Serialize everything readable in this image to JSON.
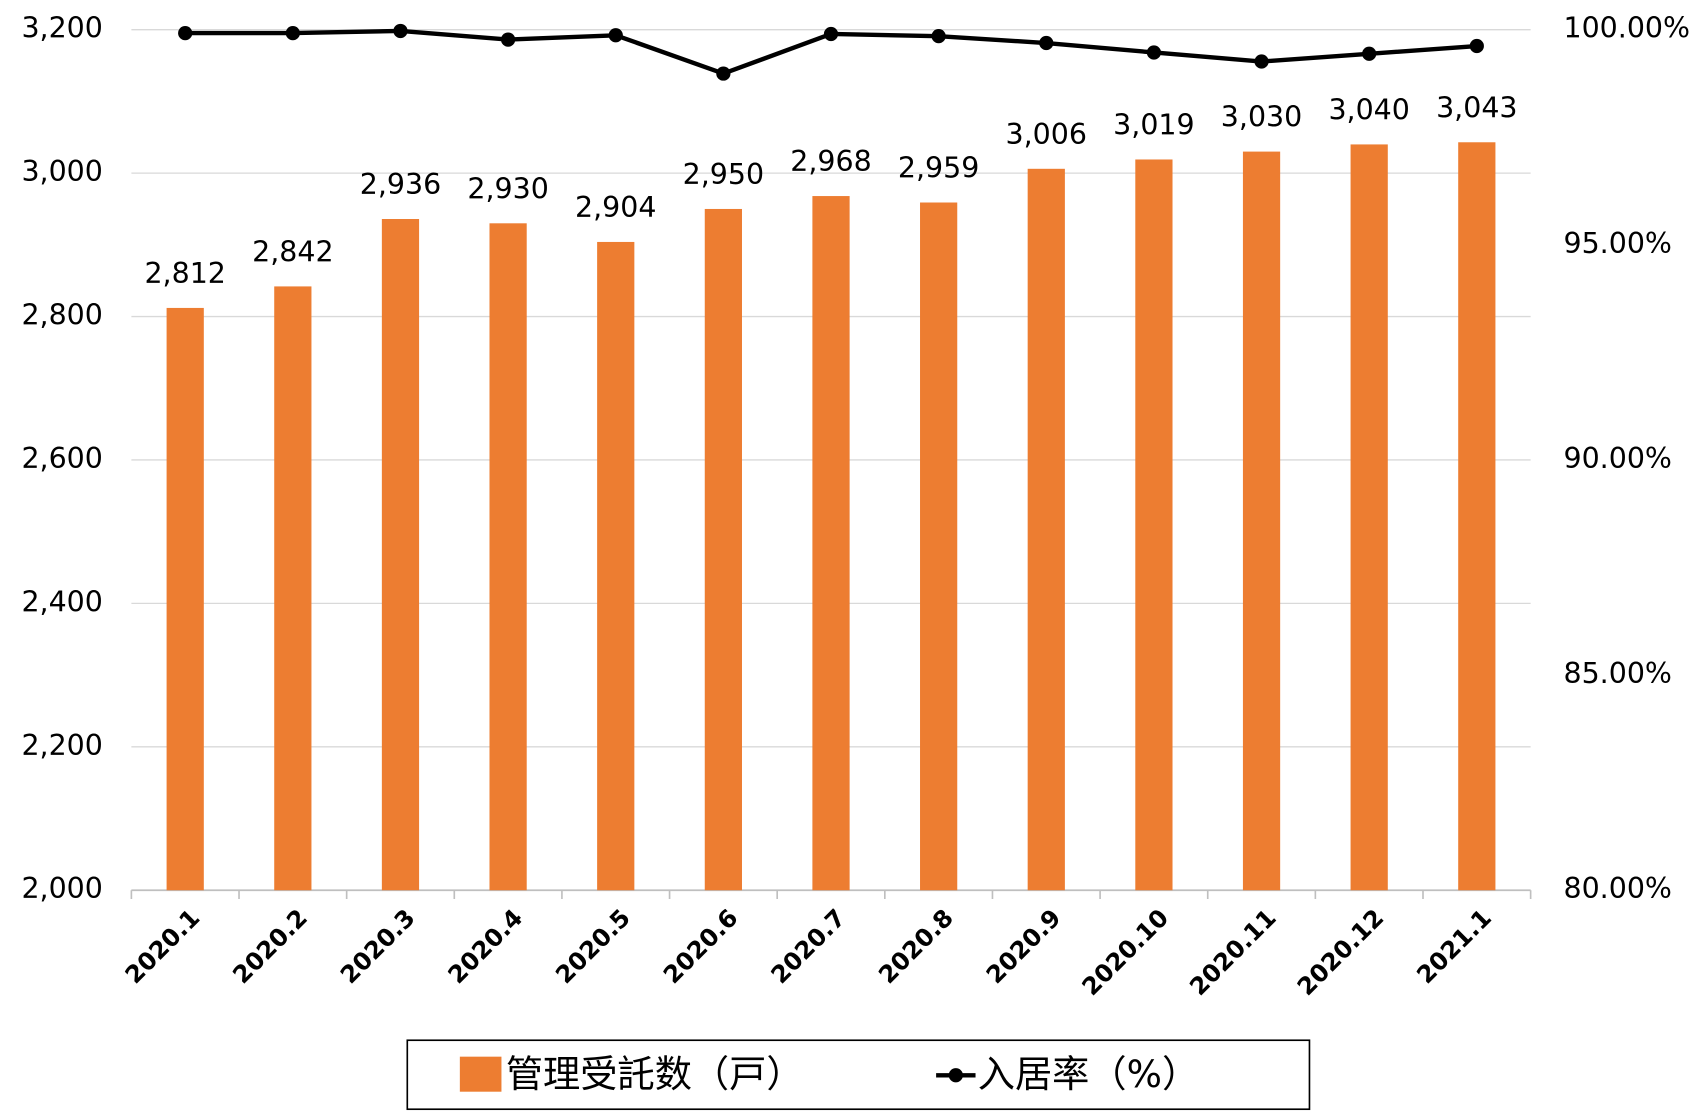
{
  "chart_data": {
    "type": "bar-line",
    "categories": [
      "2020.1",
      "2020.2",
      "2020.3",
      "2020.4",
      "2020.5",
      "2020.6",
      "2020.7",
      "2020.8",
      "2020.9",
      "2020.10",
      "2020.11",
      "2020.12",
      "2021.1"
    ],
    "series": [
      {
        "name": "管理受託数（戸）",
        "type": "bar",
        "color": "#ED7D31",
        "axis": "y",
        "values": [
          2812,
          2842,
          2936,
          2930,
          2904,
          2950,
          2968,
          2959,
          3006,
          3019,
          3030,
          3040,
          3043
        ],
        "value_labels": [
          "2,812",
          "2,842",
          "2,936",
          "2,930",
          "2,904",
          "2,950",
          "2,968",
          "2,959",
          "3,006",
          "3,019",
          "3,030",
          "3,040",
          "3,043"
        ]
      },
      {
        "name": "入居率（%）",
        "type": "line",
        "color": "#000000",
        "axis": "y2",
        "values": [
          99.92,
          99.92,
          99.97,
          99.77,
          99.87,
          98.98,
          99.9,
          99.85,
          99.69,
          99.47,
          99.26,
          99.44,
          99.62
        ]
      }
    ],
    "ylim": [
      2000,
      3200
    ],
    "yticks": [
      {
        "value": 2000,
        "label": "2,000"
      },
      {
        "value": 2200,
        "label": "2,200"
      },
      {
        "value": 2400,
        "label": "2,400"
      },
      {
        "value": 2600,
        "label": "2,600"
      },
      {
        "value": 2800,
        "label": "2,800"
      },
      {
        "value": 3000,
        "label": "3,000"
      },
      {
        "value": 3200,
        "label": "3,200"
      }
    ],
    "y2lim": [
      80,
      100
    ],
    "y2ticks": [
      {
        "value": 80,
        "label": "80.00%"
      },
      {
        "value": 85,
        "label": "85.00%"
      },
      {
        "value": 90,
        "label": "90.00%"
      },
      {
        "value": 95,
        "label": "95.00%"
      },
      {
        "value": 100,
        "label": "100.00%"
      }
    ],
    "grid": true,
    "legend": "bottom"
  }
}
